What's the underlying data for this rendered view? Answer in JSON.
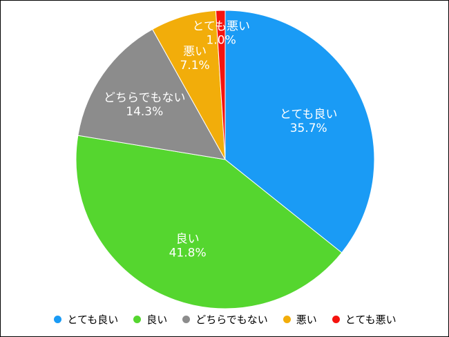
{
  "chart_data": {
    "type": "pie",
    "title": "",
    "legend_position": "bottom",
    "categories": [
      "とても良い",
      "良い",
      "どちらでもない",
      "悪い",
      "とても悪い"
    ],
    "values": [
      35.7,
      41.8,
      14.3,
      7.1,
      1.0
    ],
    "value_labels": [
      "35.7%",
      "41.8%",
      "14.3%",
      "7.1%",
      "1.0%"
    ],
    "colors": [
      "#1a9bf5",
      "#55d62f",
      "#8c8c8c",
      "#f2ad0a",
      "#f5130e"
    ]
  }
}
